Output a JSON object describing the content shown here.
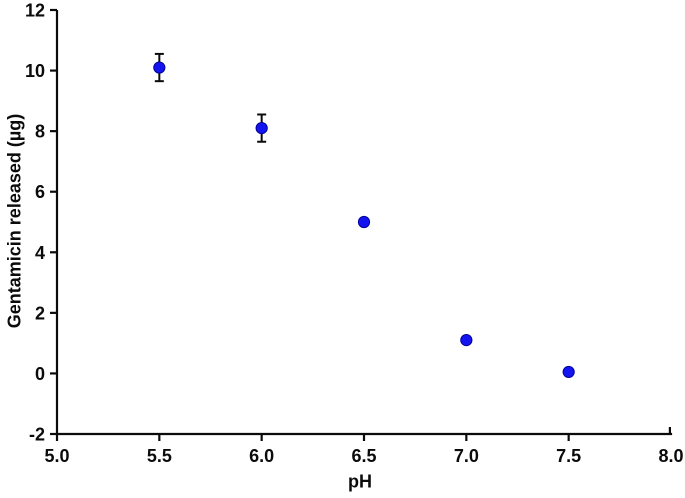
{
  "figure": {
    "background_color": "#ffffff",
    "axis_color": "#0b0b0b",
    "error_bar_color": "#0b0b0b",
    "marker_fill_color": "#1414f0",
    "marker_edge_color": "#00009a"
  },
  "chart_data": {
    "type": "scatter",
    "title": "",
    "xlabel": "pH",
    "ylabel": "Gentamicin released (µg)",
    "x": [
      5.5,
      6.0,
      6.5,
      7.0,
      7.5
    ],
    "y": [
      10.1,
      8.1,
      5.0,
      1.1,
      0.05
    ],
    "y_error": [
      0.45,
      0.45,
      0,
      0,
      0
    ],
    "xlim": [
      5.0,
      8.0
    ],
    "ylim": [
      -2,
      12
    ],
    "x_tick_values": [
      5.0,
      5.5,
      6.0,
      6.5,
      7.0,
      7.5,
      8.0
    ],
    "x_tick_labels": [
      "5.0",
      "5.5",
      "6.0",
      "6.5",
      "7.0",
      "7.5",
      "8.0"
    ],
    "y_tick_values": [
      -2,
      0,
      2,
      4,
      6,
      8,
      10,
      12
    ],
    "y_tick_labels": [
      "-2",
      "0",
      "2",
      "4",
      "6",
      "8",
      "10",
      "12"
    ],
    "grid": false,
    "legend": null
  }
}
